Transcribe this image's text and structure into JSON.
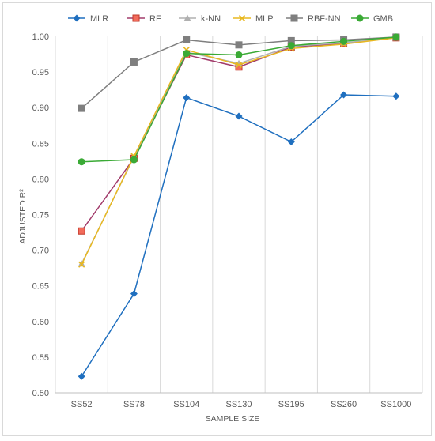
{
  "chart_data": {
    "type": "line",
    "title": "",
    "xlabel": "SAMPLE SIZE",
    "ylabel": "ADJUSTED R²",
    "categories": [
      "SS52",
      "SS78",
      "SS104",
      "SS130",
      "SS195",
      "SS260",
      "SS1000"
    ],
    "ylim": [
      0.5,
      1.0
    ],
    "yticks": [
      "0.50",
      "0.55",
      "0.60",
      "0.65",
      "0.70",
      "0.75",
      "0.80",
      "0.85",
      "0.90",
      "0.95",
      "1.00"
    ],
    "grid": "vertical category gridlines",
    "legend_position": "top",
    "series": [
      {
        "name": "MLR",
        "color": "#1f6fbf",
        "marker": "diamond",
        "values": [
          0.523,
          0.639,
          0.914,
          0.888,
          0.852,
          0.918,
          0.916
        ]
      },
      {
        "name": "RF",
        "color": "#a23b6b",
        "marker_fill": "#f26b5b",
        "marker_stroke": "#c0392b",
        "marker": "square",
        "values": [
          0.727,
          0.829,
          0.974,
          0.957,
          0.985,
          0.99,
          0.998
        ]
      },
      {
        "name": "k-NN",
        "color": "#b0b0b0",
        "marker": "triangle",
        "values": [
          0.681,
          0.831,
          0.978,
          0.962,
          0.986,
          0.991,
          0.998
        ]
      },
      {
        "name": "MLP",
        "color": "#e8b820",
        "marker": "x",
        "values": [
          0.68,
          0.832,
          0.981,
          0.96,
          0.983,
          0.989,
          0.998
        ]
      },
      {
        "name": "RBF-NN",
        "color": "#7f7f7f",
        "marker": "square",
        "values": [
          0.899,
          0.964,
          0.995,
          0.988,
          0.994,
          0.995,
          0.999
        ]
      },
      {
        "name": "GMB",
        "color": "#3aaa35",
        "marker": "circle",
        "values": [
          0.824,
          0.827,
          0.976,
          0.974,
          0.987,
          0.993,
          0.999
        ]
      }
    ]
  }
}
